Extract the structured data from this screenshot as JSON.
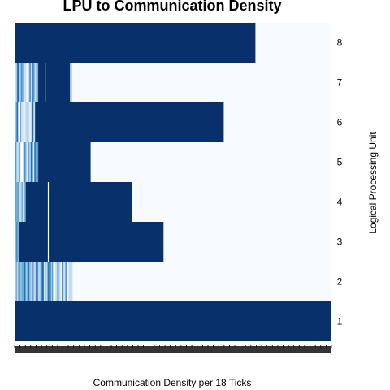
{
  "chart_data": {
    "type": "heatmap",
    "title": "LPU to Communication Density",
    "xlabel": "Communication Density per 18 Ticks",
    "ylabel": "Logical Processing Unit",
    "y_categories": [
      "1",
      "2",
      "3",
      "4",
      "5",
      "6",
      "7",
      "8"
    ],
    "x_range": [
      0,
      1
    ],
    "x_tick_labels_shown": false,
    "grid": false,
    "legend": "none",
    "colors": {
      "background": "#f7fbff",
      "dense": "#08306b",
      "mid": "#2171b5",
      "light": "#6baed6",
      "faint": "#c6dbef"
    },
    "rows": [
      {
        "lpu": "1",
        "dense_extent": 1.0,
        "sparse_band": [
          0.0,
          0.0
        ]
      },
      {
        "lpu": "2",
        "dense_extent": 0.0,
        "sparse_band": [
          0.0,
          0.18
        ]
      },
      {
        "lpu": "3",
        "dense_extent": 0.47,
        "sparse_band": [
          0.0,
          0.03
        ]
      },
      {
        "lpu": "4",
        "dense_extent": 0.37,
        "sparse_band": [
          0.0,
          0.05
        ]
      },
      {
        "lpu": "5",
        "dense_extent": 0.24,
        "sparse_band": [
          0.0,
          0.09
        ]
      },
      {
        "lpu": "6",
        "dense_extent": 0.66,
        "sparse_band": [
          0.0,
          0.08
        ]
      },
      {
        "lpu": "7",
        "dense_extent": 0.18,
        "sparse_band": [
          0.0,
          0.09
        ]
      },
      {
        "lpu": "8",
        "dense_extent": 0.76,
        "sparse_band": [
          0.0,
          0.0
        ]
      }
    ]
  }
}
